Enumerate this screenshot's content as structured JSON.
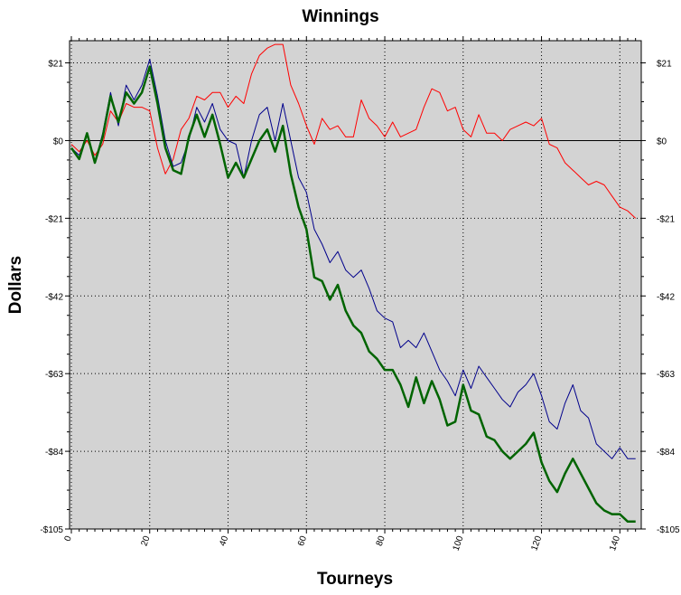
{
  "chart_data": {
    "type": "line",
    "title": "Winnings",
    "xlabel": "Tourneys",
    "ylabel": "Dollars",
    "xlim": [
      0,
      145
    ],
    "ylim": [
      -105,
      27
    ],
    "x_ticks": [
      0,
      20,
      40,
      60,
      80,
      100,
      120,
      140
    ],
    "x_tick_labels": [
      "0",
      "20",
      "40",
      "60",
      "80",
      "100",
      "120",
      "140"
    ],
    "y_ticks": [
      21,
      0,
      -21,
      -42,
      -63,
      -84,
      -105
    ],
    "y_tick_labels": [
      "$21",
      "$0",
      "-$21",
      "-$42",
      "-$63",
      "-$84",
      "-$105"
    ],
    "grid": true,
    "legend": "none",
    "colors": {
      "plot_bg": "#d3d3d3",
      "zero_line": "#000000"
    },
    "series": [
      {
        "color": "#ff0000",
        "x": [
          0,
          2,
          4,
          6,
          8,
          10,
          12,
          14,
          16,
          18,
          20,
          22,
          24,
          26,
          28,
          30,
          32,
          34,
          36,
          38,
          40,
          42,
          44,
          46,
          48,
          50,
          52,
          54,
          56,
          58,
          60,
          62,
          64,
          66,
          68,
          70,
          72,
          74,
          76,
          78,
          80,
          82,
          84,
          86,
          88,
          90,
          92,
          94,
          96,
          98,
          100,
          102,
          104,
          106,
          108,
          110,
          112,
          114,
          116,
          118,
          120,
          122,
          124,
          126,
          128,
          130,
          132,
          134,
          136,
          138,
          140,
          142,
          144
        ],
        "values": [
          -1,
          -3,
          0,
          -4,
          -1,
          8,
          5,
          10,
          9,
          9,
          8,
          -2,
          -9,
          -5,
          3,
          6,
          12,
          11,
          13,
          13,
          9,
          12,
          10,
          18,
          23,
          25,
          26,
          26,
          15,
          10,
          4,
          -1,
          6,
          3,
          4,
          1,
          1,
          11,
          6,
          4,
          1,
          5,
          1,
          2,
          3,
          9,
          14,
          13,
          8,
          9,
          3,
          1,
          7,
          2,
          2,
          0,
          3,
          4,
          5,
          4,
          6,
          -1,
          -2,
          -6,
          -8,
          -10,
          -12,
          -11,
          -12,
          -15,
          -18,
          -19,
          -21
        ]
      },
      {
        "color": "#00008b",
        "x": [
          0,
          2,
          4,
          6,
          8,
          10,
          12,
          14,
          16,
          18,
          20,
          22,
          24,
          26,
          28,
          30,
          32,
          34,
          36,
          38,
          40,
          42,
          44,
          46,
          48,
          50,
          52,
          54,
          56,
          58,
          60,
          62,
          64,
          66,
          68,
          70,
          72,
          74,
          76,
          78,
          80,
          82,
          84,
          86,
          88,
          90,
          92,
          94,
          96,
          98,
          100,
          102,
          104,
          106,
          108,
          110,
          112,
          114,
          116,
          118,
          120,
          122,
          124,
          126,
          128,
          130,
          132,
          134,
          136,
          138,
          140,
          142,
          144
        ],
        "values": [
          -2,
          -4,
          2,
          -6,
          2,
          13,
          4,
          15,
          11,
          15,
          22,
          12,
          0,
          -7,
          -6,
          0,
          9,
          5,
          10,
          3,
          0,
          -1,
          -10,
          0,
          7,
          9,
          0,
          10,
          0,
          -10,
          -14,
          -24,
          -28,
          -33,
          -30,
          -35,
          -37,
          -35,
          -40,
          -46,
          -48,
          -49,
          -56,
          -54,
          -56,
          -52,
          -57,
          -62,
          -65,
          -69,
          -62,
          -67,
          -61,
          -64,
          -67,
          -70,
          -72,
          -68,
          -66,
          -63,
          -69,
          -76,
          -78,
          -71,
          -66,
          -73,
          -75,
          -82,
          -84,
          -86,
          -83,
          -86,
          -86
        ]
      },
      {
        "color": "#006400",
        "x": [
          0,
          2,
          4,
          6,
          8,
          10,
          12,
          14,
          16,
          18,
          20,
          22,
          24,
          26,
          28,
          30,
          32,
          34,
          36,
          38,
          40,
          42,
          44,
          46,
          48,
          50,
          52,
          54,
          56,
          58,
          60,
          62,
          64,
          66,
          68,
          70,
          72,
          74,
          76,
          78,
          80,
          82,
          84,
          86,
          88,
          90,
          92,
          94,
          96,
          98,
          100,
          102,
          104,
          106,
          108,
          110,
          112,
          114,
          116,
          118,
          120,
          122,
          124,
          126,
          128,
          130,
          132,
          134,
          136,
          138,
          140,
          142,
          144
        ],
        "values": [
          -2,
          -5,
          2,
          -6,
          1,
          12,
          5,
          13,
          10,
          13,
          20,
          10,
          -2,
          -8,
          -9,
          1,
          7,
          1,
          7,
          -1,
          -10,
          -6,
          -10,
          -5,
          0,
          3,
          -3,
          4,
          -9,
          -18,
          -24,
          -37,
          -38,
          -43,
          -39,
          -46,
          -50,
          -52,
          -57,
          -59,
          -62,
          -62,
          -66,
          -72,
          -64,
          -71,
          -65,
          -70,
          -77,
          -76,
          -66,
          -73,
          -74,
          -80,
          -81,
          -84,
          -86,
          -84,
          -82,
          -79,
          -87,
          -92,
          -95,
          -90,
          -86,
          -90,
          -94,
          -98,
          -100,
          -101,
          -101,
          -103,
          -103
        ]
      }
    ]
  }
}
